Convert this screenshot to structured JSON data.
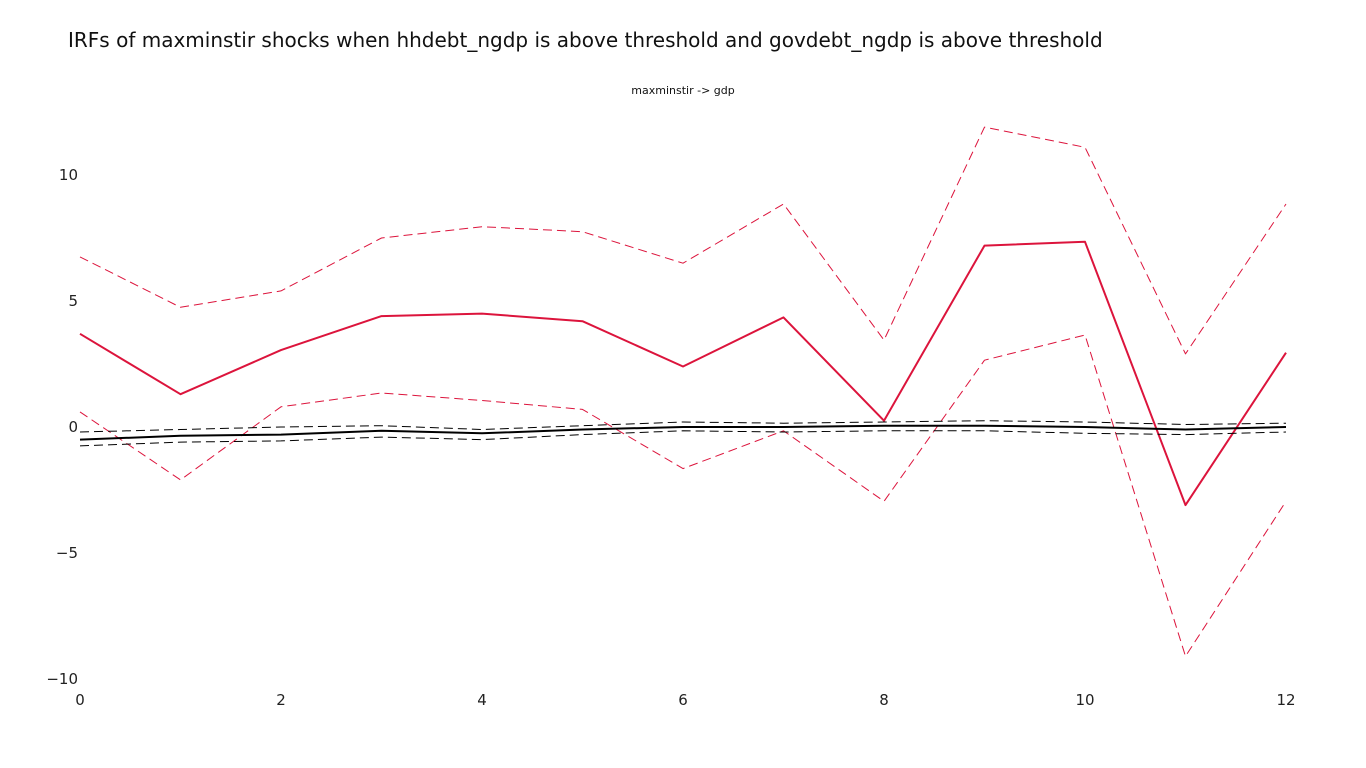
{
  "title": "IRFs of maxminstir shocks when hhdebt_ngdp is above threshold and govdebt_ngdp is above threshold",
  "chart_data": {
    "type": "line",
    "subtitle": "maxminstir -> gdp",
    "x": [
      0,
      1,
      2,
      3,
      4,
      5,
      6,
      7,
      8,
      9,
      10,
      11,
      12
    ],
    "xlim": [
      0,
      12
    ],
    "ylim": [
      -10,
      12
    ],
    "xticks": [
      0,
      2,
      4,
      6,
      8,
      10,
      12
    ],
    "yticks": [
      -10,
      -5,
      0,
      5,
      10
    ],
    "ytick_labels": [
      "−10",
      "−5",
      "0",
      "5",
      "10"
    ],
    "grid": false,
    "series": [
      {
        "values": [
          3.7,
          1.3,
          3.05,
          4.4,
          4.5,
          4.2,
          2.4,
          4.35,
          0.25,
          7.2,
          7.35,
          -3.1,
          2.95
        ],
        "color": "#DC143C",
        "dash": "solid",
        "width": 2
      },
      {
        "values": [
          6.75,
          4.75,
          5.4,
          7.5,
          7.95,
          7.75,
          6.5,
          8.85,
          3.45,
          11.9,
          11.1,
          2.9,
          8.85
        ],
        "color": "#DC143C",
        "dash": "dashed",
        "width": 1
      },
      {
        "values": [
          0.6,
          -2.1,
          0.8,
          1.35,
          1.05,
          0.7,
          -1.65,
          -0.15,
          -2.95,
          2.65,
          3.65,
          -9.1,
          -2.95
        ],
        "color": "#DC143C",
        "dash": "dashed",
        "width": 1
      },
      {
        "values": [
          -0.5,
          -0.35,
          -0.3,
          -0.15,
          -0.25,
          -0.1,
          0.0,
          0.0,
          0.05,
          0.05,
          0.0,
          -0.1,
          0.0
        ],
        "color": "#000000",
        "dash": "solid",
        "width": 2
      },
      {
        "values": [
          -0.2,
          -0.1,
          0.0,
          0.05,
          -0.1,
          0.05,
          0.2,
          0.15,
          0.2,
          0.25,
          0.2,
          0.1,
          0.15
        ],
        "color": "#000000",
        "dash": "dashed",
        "width": 1
      },
      {
        "values": [
          -0.75,
          -0.6,
          -0.55,
          -0.4,
          -0.5,
          -0.3,
          -0.15,
          -0.2,
          -0.15,
          -0.15,
          -0.25,
          -0.3,
          -0.2
        ],
        "color": "#000000",
        "dash": "dashed",
        "width": 1
      }
    ]
  }
}
